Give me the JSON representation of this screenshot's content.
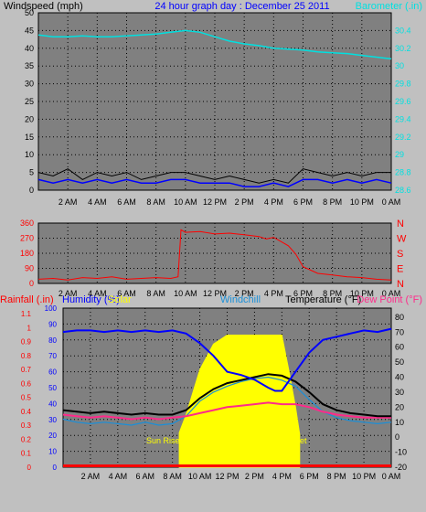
{
  "colors": {
    "background": "#c0c0c0",
    "plot": "#808080",
    "grid": "#000000",
    "windspeed_avg": "#0000ff",
    "windspeed_gust": "#000000",
    "barometer": "#00e0e0",
    "direction": "#ff0000",
    "rainfall": "#ff0000",
    "humidity": "#0000ff",
    "solar": "#ffff00",
    "windchill": "#1a8fd8",
    "temperature": "#000000",
    "dewpoint": "#ff2a8a"
  },
  "header": {
    "windspeed_label": "Windspeed (mph)",
    "title": "24 hour graph day : December 25 2011",
    "barometer_label": "Barometer (.in)"
  },
  "bottom_header": {
    "rainfall_label": "Rainfall (.in)",
    "humidity_label": "Humidity (%)",
    "solar_label": "Solar",
    "windchill_label": "Windchill",
    "temperature_label": "Temperature (°F)",
    "dewpoint_label": "Dew Point (°F)"
  },
  "annotations": {
    "sunrise": "Sun Rise",
    "sunset": "Set"
  },
  "chart_data": [
    {
      "type": "line",
      "x_labels": [
        "2 AM",
        "4 AM",
        "6 AM",
        "8 AM",
        "10 AM",
        "12 PM",
        "2 PM",
        "4 PM",
        "6 PM",
        "8 PM",
        "10 PM",
        "0 AM"
      ],
      "left_ticks": [
        "0",
        "5",
        "10",
        "15",
        "20",
        "25",
        "30",
        "35",
        "40",
        "45",
        "50"
      ],
      "right_ticks": [
        "28.6",
        "28.8",
        "29",
        "29.2",
        "29.4",
        "29.6",
        "29.8",
        "30",
        "30.2",
        "30.4"
      ],
      "ylim_left": [
        0,
        50
      ],
      "ylim_right": [
        28.6,
        30.6
      ],
      "grid": true,
      "series": [
        {
          "key": "gust",
          "hours": [
            0,
            1,
            2,
            3,
            4,
            5,
            6,
            7,
            8,
            9,
            10,
            11,
            12,
            13,
            14,
            15,
            16,
            17,
            18,
            19,
            20,
            21,
            22,
            23,
            24
          ],
          "values": [
            5,
            4,
            6,
            3,
            5,
            4,
            5,
            3,
            4,
            5,
            5,
            4,
            3,
            4,
            3,
            2,
            3,
            2,
            6,
            5,
            4,
            5,
            4,
            5,
            5
          ]
        },
        {
          "key": "avg",
          "hours": [
            0,
            1,
            2,
            3,
            4,
            5,
            6,
            7,
            8,
            9,
            10,
            11,
            12,
            13,
            14,
            15,
            16,
            17,
            18,
            19,
            20,
            21,
            22,
            23,
            24
          ],
          "values": [
            3,
            2,
            3,
            2,
            3,
            2,
            3,
            2,
            2,
            3,
            3,
            2,
            2,
            2,
            1,
            1,
            2,
            1,
            3,
            3,
            2,
            3,
            2,
            3,
            2
          ]
        },
        {
          "key": "barometer",
          "hours": [
            0,
            1,
            2,
            3,
            4,
            5,
            6,
            7,
            8,
            9,
            10,
            11,
            12,
            13,
            14,
            15,
            16,
            17,
            18,
            19,
            20,
            21,
            22,
            23,
            24
          ],
          "values": [
            30.35,
            30.33,
            30.33,
            30.34,
            30.33,
            30.33,
            30.34,
            30.35,
            30.36,
            30.38,
            30.4,
            30.38,
            30.33,
            30.28,
            30.25,
            30.23,
            30.2,
            30.19,
            30.18,
            30.16,
            30.15,
            30.14,
            30.12,
            30.1,
            30.08
          ]
        }
      ]
    },
    {
      "type": "line",
      "x_labels": [
        "2 AM",
        "4 AM",
        "6 AM",
        "8 AM",
        "10 AM",
        "12 PM",
        "2 PM",
        "4 PM",
        "6 PM",
        "8 PM",
        "10 PM",
        "0 AM"
      ],
      "left_ticks": [
        "0",
        "90",
        "180",
        "270",
        "360"
      ],
      "right_ticks": [
        "N",
        "E",
        "S",
        "W",
        "N"
      ],
      "ylim": [
        0,
        360
      ],
      "grid": true,
      "series": [
        {
          "key": "direction",
          "hours": [
            0,
            1,
            2,
            3,
            4,
            5,
            6,
            7,
            8,
            9,
            9.5,
            9.7,
            10,
            11,
            12,
            13,
            14,
            15,
            15.5,
            16,
            16.5,
            17,
            17.5,
            18,
            19,
            20,
            21,
            22,
            23,
            24
          ],
          "values": [
            25,
            30,
            20,
            35,
            30,
            40,
            25,
            30,
            35,
            30,
            40,
            320,
            305,
            310,
            295,
            300,
            290,
            280,
            265,
            275,
            250,
            225,
            175,
            100,
            60,
            50,
            40,
            35,
            25,
            20
          ]
        }
      ]
    },
    {
      "type": "line",
      "x_labels": [
        "2 AM",
        "4 AM",
        "6 AM",
        "8 AM",
        "10 AM",
        "12 PM",
        "2 PM",
        "4 PM",
        "6 PM",
        "8 PM",
        "10 PM",
        "0 AM"
      ],
      "rain_ticks": [
        "0",
        "0.1",
        "0.2",
        "0.3",
        "0.4",
        "0.5",
        "0.6",
        "0.7",
        "0.8",
        "0.9",
        "1",
        "1.1"
      ],
      "humidity_ticks": [
        "0",
        "10",
        "20",
        "30",
        "40",
        "50",
        "60",
        "70",
        "80",
        "90",
        "100"
      ],
      "temp_ticks": [
        "-20",
        "-10",
        "0",
        "10",
        "20",
        "30",
        "40",
        "50",
        "60",
        "70",
        "80"
      ],
      "temp_ylim": [
        -20,
        86
      ],
      "humidity_ylim": [
        0,
        100
      ],
      "grid": true,
      "series": [
        {
          "key": "humidity",
          "hours": [
            0,
            1,
            2,
            3,
            4,
            5,
            6,
            7,
            8,
            9,
            10,
            11,
            12,
            13,
            14,
            15,
            15.5,
            16,
            17,
            18,
            19,
            20,
            21,
            22,
            23,
            24
          ],
          "values": [
            85,
            86,
            86,
            85,
            86,
            85,
            86,
            85,
            86,
            84,
            78,
            70,
            60,
            58,
            55,
            50,
            48,
            48,
            60,
            72,
            80,
            82,
            84,
            86,
            85,
            87
          ]
        },
        {
          "key": "temperature",
          "hours": [
            0,
            1,
            2,
            3,
            4,
            5,
            6,
            7,
            8,
            9,
            10,
            11,
            12,
            13,
            14,
            15,
            16,
            17,
            18,
            19,
            20,
            21,
            22,
            23,
            24
          ],
          "values": [
            18,
            17,
            16,
            17,
            16,
            15,
            16,
            15,
            15,
            18,
            26,
            32,
            36,
            38,
            40,
            42,
            41,
            37,
            30,
            22,
            18,
            16,
            15,
            14,
            14
          ]
        },
        {
          "key": "windchill",
          "hours": [
            0,
            1,
            2,
            3,
            4,
            5,
            6,
            7,
            8,
            9,
            10,
            11,
            12,
            13,
            14,
            15,
            16,
            17,
            18,
            19,
            20,
            21,
            22,
            23,
            24
          ],
          "values": [
            12,
            10,
            9,
            10,
            9,
            8,
            10,
            8,
            9,
            14,
            24,
            30,
            34,
            37,
            39,
            40,
            38,
            34,
            25,
            17,
            13,
            11,
            10,
            9,
            10
          ]
        },
        {
          "key": "dewpoint",
          "hours": [
            0,
            1,
            2,
            3,
            4,
            5,
            6,
            7,
            8,
            9,
            10,
            11,
            12,
            13,
            14,
            15,
            16,
            17,
            18,
            19,
            20,
            21,
            22,
            23,
            24
          ],
          "values": [
            15,
            14,
            13,
            14,
            13,
            12,
            13,
            12,
            13,
            14,
            16,
            18,
            20,
            21,
            22,
            23,
            22,
            22,
            20,
            17,
            15,
            14,
            13,
            13,
            13
          ]
        },
        {
          "key": "solar",
          "hours": [
            8.5,
            9,
            9.5,
            10,
            11,
            12,
            13,
            14,
            15,
            16,
            16.5,
            17,
            17.3
          ],
          "values": [
            3,
            15,
            30,
            45,
            62,
            68,
            68,
            68,
            68,
            68,
            45,
            20,
            2
          ]
        }
      ]
    }
  ]
}
